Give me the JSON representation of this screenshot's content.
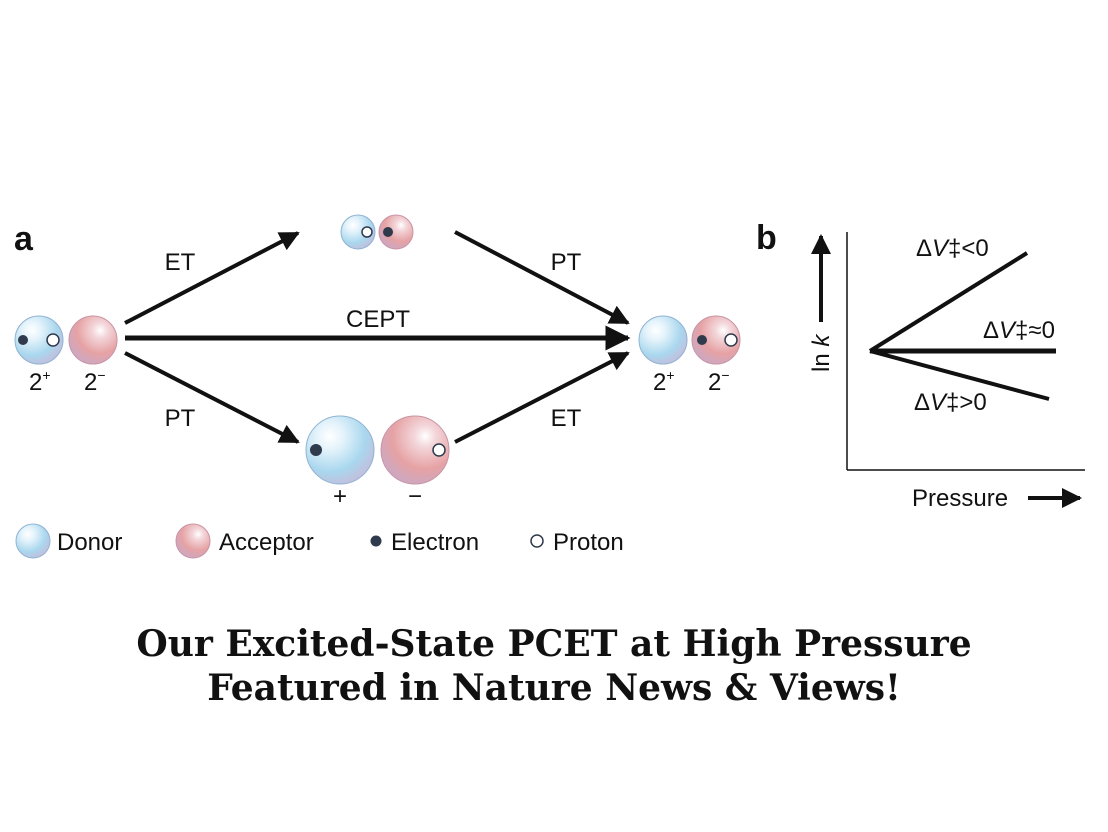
{
  "panel_a": {
    "label": "a",
    "arrow_labels": {
      "et_top": "ET",
      "pt_top": "PT",
      "cept": "CEPT",
      "pt_bottom": "PT",
      "et_bottom": "ET"
    },
    "charges": {
      "left_donor": "2",
      "left_donor_sup": "+",
      "left_acceptor": "2",
      "left_acceptor_sup": "−",
      "right_donor": "2",
      "right_donor_sup": "+",
      "right_acceptor": "2",
      "right_acceptor_sup": "−",
      "bottom_donor": "+",
      "bottom_acceptor": "−"
    }
  },
  "panel_b": {
    "label": "b",
    "y_axis_label": "ln k",
    "x_axis_label": "Pressure",
    "lines": [
      {
        "label_prefix": "Δ",
        "label_var": "V",
        "label_suffix": "‡<0"
      },
      {
        "label_prefix": "Δ",
        "label_var": "V",
        "label_suffix": "‡≈0"
      },
      {
        "label_prefix": "Δ",
        "label_var": "V",
        "label_suffix": "‡>0"
      }
    ]
  },
  "legend": {
    "donor": "Donor",
    "acceptor": "Acceptor",
    "electron": "Electron",
    "proton": "Proton"
  },
  "headline": {
    "line1": "Our Excited-State PCET at High Pressure",
    "line2": "Featured in Nature News & Views!"
  },
  "colors": {
    "donor": "#9fd0ea",
    "acceptor": "#e9a3a3",
    "electron": "#2f3a4d",
    "line": "#111111"
  }
}
